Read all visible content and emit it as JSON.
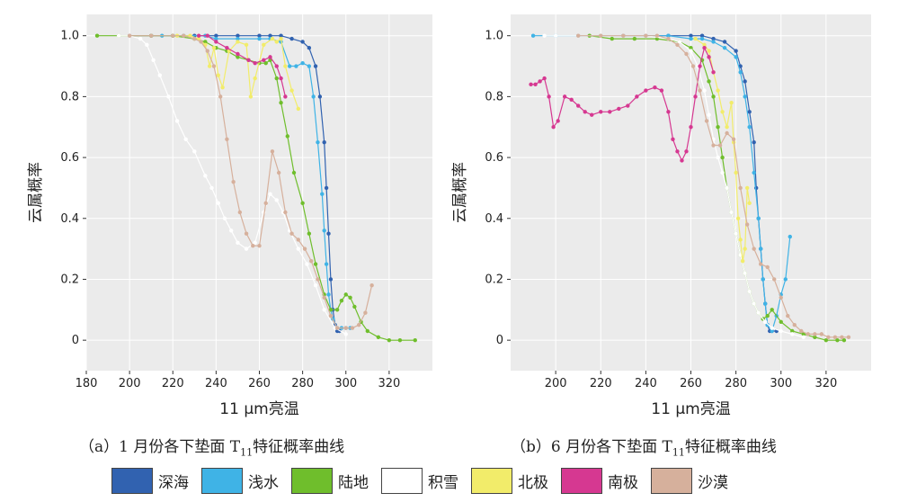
{
  "colors": {
    "deep_sea": "#3162b0",
    "shallow_water": "#3fb3e6",
    "land": "#6fbe2c",
    "snow": "#ffffff",
    "arctic": "#f2ec6a",
    "antarctic": "#d63891",
    "desert": "#d6b09c",
    "plot_bg": "#ebebeb"
  },
  "captions": {
    "a_prefix": "（a）1 月份各下垫面 T",
    "a_sub": "11",
    "a_suffix": "特征概率曲线",
    "b_prefix": "（b）6 月份各下垫面 T",
    "b_sub": "11",
    "b_suffix": "特征概率曲线"
  },
  "legend": [
    "深海",
    "浅水",
    "陆地",
    "积雪",
    "北极",
    "南极",
    "沙漠"
  ],
  "chart_data": [
    {
      "type": "line",
      "xlabel": "11 μm亮温",
      "ylabel": "云属概率",
      "xlim": [
        180,
        340
      ],
      "ylim": [
        -0.1,
        1.07
      ],
      "xticks": [
        180,
        200,
        220,
        240,
        260,
        280,
        300,
        320
      ],
      "yticks": [
        0,
        0.2,
        0.4,
        0.6,
        0.8,
        1.0
      ],
      "ytick_labels": [
        "0",
        "0.2",
        "0.4",
        "0.6",
        "0.8",
        "1.0"
      ],
      "grid": true,
      "series": [
        {
          "name": "深海",
          "color_key": "deep_sea",
          "x": [
            200,
            210,
            220,
            230,
            240,
            250,
            260,
            265,
            270,
            275,
            280,
            283,
            286,
            288,
            290,
            291,
            292,
            293,
            294,
            295,
            296,
            297
          ],
          "y": [
            1.0,
            1.0,
            1.0,
            1.0,
            1.0,
            1.0,
            1.0,
            1.0,
            1.0,
            0.99,
            0.98,
            0.96,
            0.9,
            0.8,
            0.65,
            0.5,
            0.35,
            0.2,
            0.1,
            0.05,
            0.03,
            0.03
          ]
        },
        {
          "name": "浅水",
          "color_key": "shallow_water",
          "x": [
            215,
            225,
            235,
            240,
            250,
            260,
            265,
            270,
            274,
            277,
            280,
            283,
            285,
            287,
            289,
            290,
            291,
            292,
            293,
            294,
            296,
            298,
            300,
            302
          ],
          "y": [
            1.0,
            1.0,
            1.0,
            0.99,
            0.99,
            0.99,
            0.99,
            0.98,
            0.9,
            0.9,
            0.91,
            0.9,
            0.8,
            0.65,
            0.48,
            0.36,
            0.25,
            0.15,
            0.1,
            0.07,
            0.04,
            0.04,
            0.04,
            0.04
          ]
        },
        {
          "name": "陆地",
          "color_key": "land",
          "x": [
            185,
            195,
            210,
            220,
            230,
            235,
            240,
            245,
            250,
            255,
            260,
            263,
            265,
            268,
            270,
            273,
            276,
            280,
            283,
            286,
            290,
            293,
            296,
            298,
            300,
            302,
            304,
            307,
            310,
            315,
            320,
            325,
            332
          ],
          "y": [
            1.0,
            1.0,
            1.0,
            1.0,
            0.99,
            0.98,
            0.96,
            0.95,
            0.93,
            0.92,
            0.91,
            0.91,
            0.92,
            0.86,
            0.78,
            0.67,
            0.55,
            0.45,
            0.35,
            0.25,
            0.15,
            0.1,
            0.1,
            0.13,
            0.15,
            0.14,
            0.11,
            0.06,
            0.03,
            0.01,
            0.0,
            0.0,
            0.0
          ]
        },
        {
          "name": "积雪",
          "color_key": "snow",
          "x": [
            195,
            200,
            205,
            208,
            211,
            214,
            218,
            222,
            226,
            230,
            235,
            238,
            241,
            244,
            247,
            250,
            254,
            258,
            262,
            265,
            268,
            271,
            274,
            278,
            282,
            286,
            290,
            295,
            300
          ],
          "y": [
            1.0,
            1.0,
            0.99,
            0.97,
            0.92,
            0.87,
            0.8,
            0.72,
            0.66,
            0.62,
            0.54,
            0.5,
            0.45,
            0.4,
            0.36,
            0.32,
            0.3,
            0.32,
            0.42,
            0.48,
            0.46,
            0.42,
            0.36,
            0.3,
            0.25,
            0.18,
            0.1,
            0.04,
            0.02
          ]
        },
        {
          "name": "北极",
          "color_key": "arctic",
          "x": [
            222,
            228,
            232,
            235,
            237,
            239,
            241,
            243,
            246,
            250,
            254,
            256,
            258,
            262,
            266,
            268,
            270,
            272,
            275,
            278
          ],
          "y": [
            1.0,
            1.0,
            0.99,
            0.97,
            0.9,
            0.96,
            0.87,
            0.83,
            0.95,
            0.98,
            0.97,
            0.8,
            0.86,
            0.97,
            0.99,
            0.98,
            0.99,
            0.9,
            0.82,
            0.76
          ]
        },
        {
          "name": "南极",
          "color_key": "antarctic",
          "x": [
            232,
            236,
            240,
            245,
            250,
            255,
            258,
            262,
            265,
            268,
            270,
            272
          ],
          "y": [
            1.0,
            1.0,
            0.98,
            0.96,
            0.94,
            0.92,
            0.91,
            0.92,
            0.93,
            0.9,
            0.86,
            0.8
          ]
        },
        {
          "name": "沙漠",
          "color_key": "desert",
          "x": [
            200,
            210,
            220,
            225,
            230,
            233,
            236,
            239,
            242,
            245,
            248,
            251,
            254,
            257,
            260,
            263,
            266,
            269,
            272,
            275,
            278,
            281,
            284,
            287,
            290,
            293,
            296,
            300,
            303,
            306,
            309,
            312
          ],
          "y": [
            1.0,
            1.0,
            1.0,
            1.0,
            0.99,
            0.98,
            0.95,
            0.9,
            0.8,
            0.66,
            0.52,
            0.42,
            0.35,
            0.31,
            0.31,
            0.45,
            0.62,
            0.55,
            0.42,
            0.35,
            0.33,
            0.3,
            0.26,
            0.2,
            0.14,
            0.08,
            0.04,
            0.04,
            0.04,
            0.05,
            0.09,
            0.18
          ]
        }
      ]
    },
    {
      "type": "line",
      "xlabel": "11 μm亮温",
      "ylabel": "云属概率",
      "xlim": [
        180,
        340
      ],
      "ylim": [
        -0.1,
        1.07
      ],
      "xticks": [
        200,
        220,
        240,
        260,
        280,
        300,
        320
      ],
      "yticks": [
        0,
        0.2,
        0.4,
        0.6,
        0.8,
        1.0
      ],
      "ytick_labels": [
        "0",
        "0.2",
        "0.4",
        "0.6",
        "0.8",
        "1.0"
      ],
      "grid": true,
      "series": [
        {
          "name": "深海",
          "color_key": "deep_sea",
          "x": [
            230,
            240,
            250,
            260,
            265,
            270,
            275,
            280,
            282,
            284,
            286,
            288,
            289,
            290,
            291,
            292,
            293,
            294,
            295,
            296,
            298
          ],
          "y": [
            1.0,
            1.0,
            1.0,
            1.0,
            1.0,
            0.99,
            0.98,
            0.95,
            0.9,
            0.85,
            0.75,
            0.65,
            0.5,
            0.4,
            0.3,
            0.2,
            0.12,
            0.05,
            0.03,
            0.03,
            0.03
          ]
        },
        {
          "name": "浅水",
          "color_key": "shallow_water",
          "x": [
            190,
            200,
            210,
            220,
            230,
            240,
            250,
            260,
            265,
            270,
            275,
            280,
            282,
            284,
            286,
            288,
            290,
            291,
            292,
            293,
            294,
            296,
            298,
            300,
            302,
            304
          ],
          "y": [
            1.0,
            1.0,
            1.0,
            1.0,
            1.0,
            1.0,
            1.0,
            0.99,
            0.99,
            0.98,
            0.96,
            0.93,
            0.88,
            0.8,
            0.7,
            0.55,
            0.4,
            0.3,
            0.2,
            0.12,
            0.05,
            0.03,
            0.08,
            0.15,
            0.2,
            0.34
          ]
        },
        {
          "name": "陆地",
          "color_key": "land",
          "x": [
            215,
            225,
            235,
            245,
            255,
            260,
            265,
            268,
            270,
            272,
            274,
            276,
            278,
            280,
            282,
            284,
            286,
            288,
            290,
            292,
            294,
            296,
            300,
            305,
            310,
            315,
            320,
            325,
            328
          ],
          "y": [
            1.0,
            0.99,
            0.99,
            0.99,
            0.98,
            0.96,
            0.92,
            0.85,
            0.8,
            0.7,
            0.6,
            0.5,
            0.42,
            0.35,
            0.28,
            0.22,
            0.16,
            0.12,
            0.09,
            0.07,
            0.08,
            0.1,
            0.06,
            0.03,
            0.02,
            0.01,
            0.0,
            0.0,
            0.0
          ]
        },
        {
          "name": "积雪",
          "color_key": "snow",
          "x": [
            195,
            200,
            210,
            220,
            230,
            240,
            250,
            255,
            260,
            263,
            266,
            268,
            270,
            272,
            274,
            276,
            278,
            280,
            282,
            284,
            286,
            288,
            290,
            293,
            296,
            300,
            305,
            310
          ],
          "y": [
            1.0,
            1.0,
            1.0,
            1.0,
            1.0,
            1.0,
            0.99,
            0.98,
            0.95,
            0.9,
            0.82,
            0.74,
            0.66,
            0.6,
            0.55,
            0.5,
            0.42,
            0.35,
            0.28,
            0.22,
            0.16,
            0.12,
            0.09,
            0.06,
            0.04,
            0.03,
            0.02,
            0.01
          ]
        },
        {
          "name": "北极",
          "color_key": "arctic",
          "x": [
            262,
            266,
            268,
            270,
            272,
            274,
            276,
            278,
            279,
            280,
            281,
            282,
            283,
            284,
            285,
            286
          ],
          "y": [
            0.99,
            0.97,
            0.95,
            0.88,
            0.82,
            0.75,
            0.7,
            0.78,
            0.65,
            0.55,
            0.4,
            0.33,
            0.26,
            0.3,
            0.5,
            0.45
          ]
        },
        {
          "name": "南极",
          "color_key": "antarctic",
          "x": [
            189,
            191,
            193,
            195,
            197,
            199,
            201,
            204,
            207,
            210,
            213,
            216,
            220,
            224,
            228,
            232,
            236,
            240,
            244,
            247,
            250,
            252,
            254,
            256,
            258,
            260,
            262,
            264,
            266,
            268,
            270
          ],
          "y": [
            0.84,
            0.84,
            0.85,
            0.86,
            0.8,
            0.7,
            0.72,
            0.8,
            0.79,
            0.77,
            0.75,
            0.74,
            0.75,
            0.75,
            0.76,
            0.77,
            0.8,
            0.82,
            0.83,
            0.82,
            0.75,
            0.66,
            0.62,
            0.59,
            0.62,
            0.7,
            0.8,
            0.9,
            0.96,
            0.93,
            0.88
          ]
        },
        {
          "name": "沙漠",
          "color_key": "desert",
          "x": [
            210,
            220,
            230,
            240,
            245,
            250,
            254,
            258,
            261,
            264,
            267,
            270,
            273,
            276,
            279,
            282,
            285,
            288,
            291,
            294,
            297,
            300,
            303,
            306,
            309,
            312,
            315,
            318,
            321,
            324,
            327,
            330
          ],
          "y": [
            1.0,
            1.0,
            1.0,
            1.0,
            1.0,
            0.99,
            0.97,
            0.94,
            0.9,
            0.82,
            0.72,
            0.64,
            0.64,
            0.68,
            0.66,
            0.5,
            0.38,
            0.3,
            0.25,
            0.24,
            0.2,
            0.14,
            0.08,
            0.05,
            0.03,
            0.02,
            0.02,
            0.02,
            0.01,
            0.01,
            0.01,
            0.01
          ]
        }
      ]
    }
  ]
}
